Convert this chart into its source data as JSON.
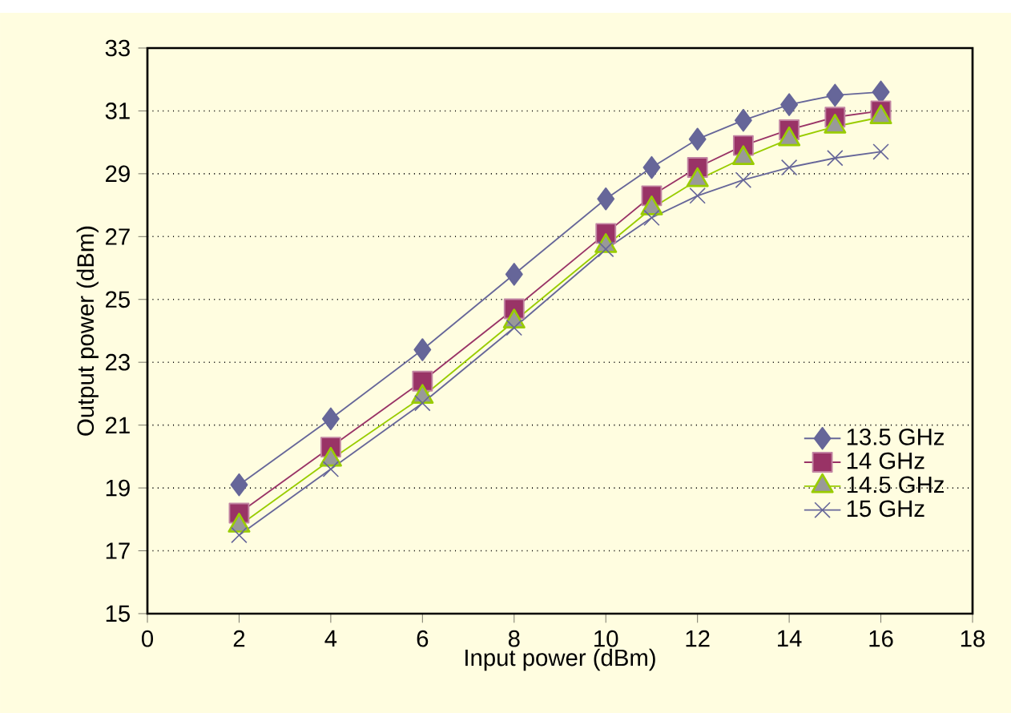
{
  "chart_data": {
    "type": "line",
    "xlabel": "Input power (dBm)",
    "ylabel": "Output power (dBm)",
    "xlim": [
      0,
      18
    ],
    "xticks": [
      0,
      2,
      4,
      6,
      8,
      10,
      12,
      14,
      16,
      18
    ],
    "ylim": [
      15,
      33
    ],
    "yticks": [
      15,
      17,
      19,
      21,
      23,
      25,
      27,
      29,
      31,
      33
    ],
    "grid": "y",
    "legend": "bottom right",
    "series": [
      {
        "name": "13.5 GHz",
        "color": "#666699",
        "marker": "diamond",
        "x": [
          2,
          4,
          6,
          8,
          10,
          11,
          12,
          13,
          14,
          15,
          16
        ],
        "values": [
          19.1,
          21.2,
          23.4,
          25.8,
          28.2,
          29.2,
          30.1,
          30.7,
          31.2,
          31.5,
          31.6
        ]
      },
      {
        "name": "14 GHz",
        "color": "#993366",
        "marker": "square",
        "x": [
          2,
          4,
          6,
          8,
          10,
          11,
          12,
          13,
          14,
          15,
          16
        ],
        "values": [
          18.2,
          20.3,
          22.4,
          24.7,
          27.1,
          28.3,
          29.2,
          29.9,
          30.4,
          30.8,
          31.0
        ]
      },
      {
        "name": "14.5 GHz",
        "color": "#99cc00",
        "marker": "triangle",
        "x": [
          2,
          4,
          6,
          8,
          10,
          11,
          12,
          13,
          14,
          15,
          16
        ],
        "values": [
          17.8,
          19.9,
          21.9,
          24.3,
          26.7,
          27.9,
          28.8,
          29.5,
          30.1,
          30.5,
          30.8
        ]
      },
      {
        "name": "15 GHz",
        "color": "#666699",
        "marker": "cross",
        "x": [
          2,
          4,
          6,
          8,
          10,
          11,
          12,
          13,
          14,
          15,
          16
        ],
        "values": [
          17.5,
          19.6,
          21.7,
          24.1,
          26.6,
          27.6,
          28.3,
          28.8,
          29.2,
          29.5,
          29.7
        ]
      }
    ]
  }
}
